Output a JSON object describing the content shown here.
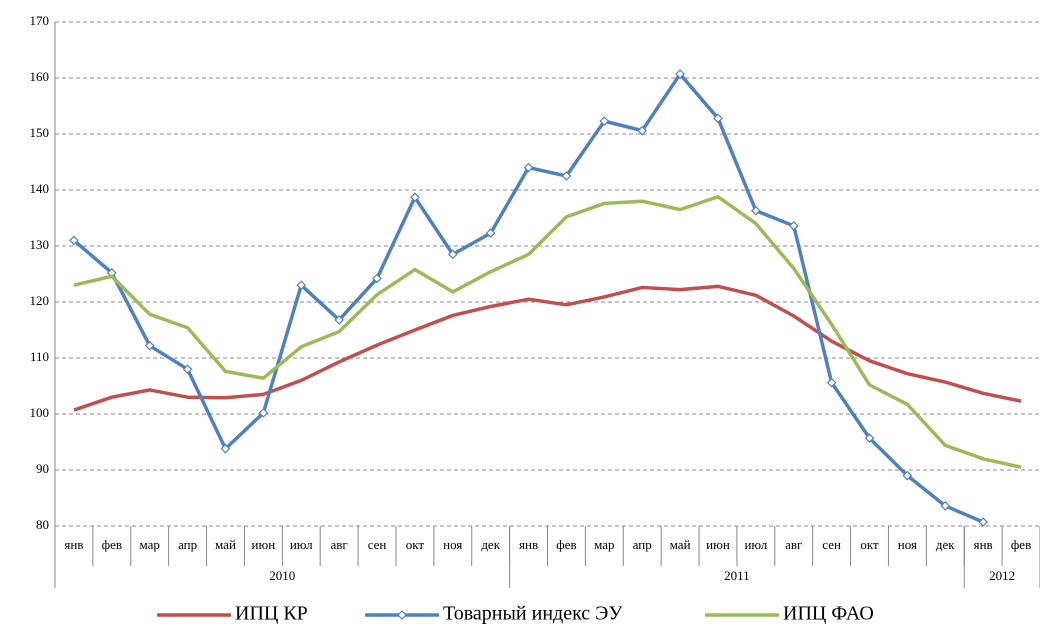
{
  "chart_data": {
    "type": "line",
    "groups": [
      {
        "label": "2010",
        "categories": [
          "янв",
          "фев",
          "мар",
          "апр",
          "май",
          "июн",
          "июл",
          "авг",
          "сен",
          "окт",
          "ноя",
          "дек"
        ]
      },
      {
        "label": "2011",
        "categories": [
          "янв",
          "фев",
          "мар",
          "апр",
          "май",
          "июн",
          "июл",
          "авг",
          "сен",
          "окт",
          "ноя",
          "дек"
        ]
      },
      {
        "label": "2012",
        "categories": [
          "янв",
          "фев"
        ]
      }
    ],
    "series": [
      {
        "name": "ИПЦ КР",
        "color": "#c0504d",
        "marker": false,
        "values": [
          100.7,
          103,
          104.3,
          103,
          102.9,
          103.5,
          106,
          109.3,
          112.3,
          115,
          117.6,
          119.2,
          120.5,
          119.5,
          120.9,
          122.6,
          122.2,
          122.8,
          121.2,
          117.5,
          113,
          109.5,
          107.2,
          105.7,
          103.7,
          102.3
        ]
      },
      {
        "name": "Товарный индекс ЭУ",
        "color": "#4f81bd",
        "marker": true,
        "values": [
          131,
          125.2,
          112.2,
          108,
          93.8,
          100.2,
          123,
          116.8,
          124.2,
          138.7,
          128.5,
          132.3,
          144,
          142.5,
          152.3,
          150.6,
          160.7,
          152.8,
          136.3,
          133.6,
          105.6,
          95.7,
          89,
          83.6,
          80.7,
          null
        ]
      },
      {
        "name": "ИПЦ ФАО",
        "color": "#9bbb59",
        "marker": false,
        "values": [
          123,
          124.6,
          117.8,
          115.4,
          107.6,
          106.4,
          112,
          114.7,
          121.3,
          125.8,
          121.8,
          125.4,
          128.5,
          135.2,
          137.6,
          138,
          136.5,
          138.8,
          134,
          126,
          116,
          105.2,
          101.7,
          94.4,
          92,
          90.5
        ]
      }
    ],
    "ylim": [
      80,
      170
    ],
    "yticks": [
      80,
      90,
      100,
      110,
      120,
      130,
      140,
      150,
      160,
      170
    ],
    "grid": true,
    "legend": "bottom"
  }
}
